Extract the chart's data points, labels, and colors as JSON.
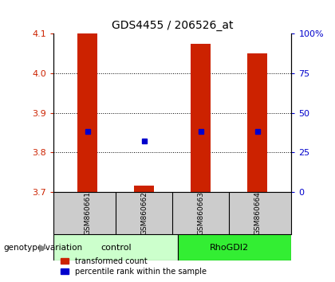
{
  "title": "GDS4455 / 206526_at",
  "samples": [
    "GSM860661",
    "GSM860662",
    "GSM860663",
    "GSM860664"
  ],
  "groups": [
    "control",
    "control",
    "RhoGDI2",
    "RhoGDI2"
  ],
  "transformed_counts": [
    4.1,
    3.715,
    4.075,
    4.05
  ],
  "percentile_ranks": [
    38,
    32,
    38,
    38
  ],
  "ylim_left": [
    3.7,
    4.1
  ],
  "ylim_right": [
    0,
    100
  ],
  "yticks_left": [
    3.7,
    3.8,
    3.9,
    4.0,
    4.1
  ],
  "yticks_right": [
    0,
    25,
    50,
    75,
    100
  ],
  "bar_color": "#cc2200",
  "dot_color": "#0000cc",
  "control_color": "#ccffcc",
  "rhodgi2_color": "#33ee33",
  "sample_bg_color": "#cccccc",
  "background_color": "#ffffff",
  "bar_width": 0.35,
  "left_label_color": "#cc2200",
  "right_label_color": "#0000cc",
  "legend_red_label": "transformed count",
  "legend_blue_label": "percentile rank within the sample",
  "genotype_label": "genotype/variation"
}
